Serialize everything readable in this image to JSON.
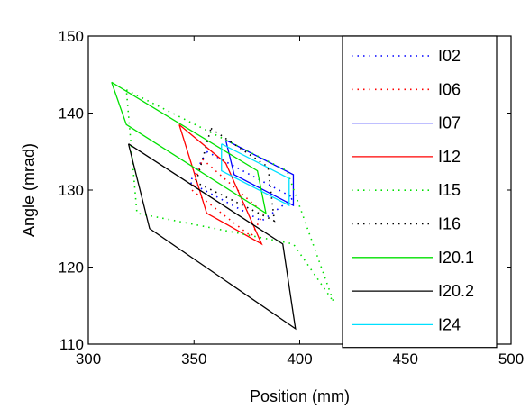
{
  "chart_data": {
    "type": "line",
    "title": "",
    "xlabel": "Position (mm)",
    "ylabel": "Angle (mrad)",
    "xlim": [
      300,
      500
    ],
    "ylim": [
      110,
      150
    ],
    "xticks": [
      300,
      350,
      400,
      450,
      500
    ],
    "yticks": [
      110,
      120,
      130,
      140,
      150
    ],
    "grid": false,
    "legend_position": "right",
    "series": [
      {
        "name": "I02",
        "color": "#0000ff",
        "style": "dotted",
        "x": [
          356,
          397,
          382,
          348,
          356
        ],
        "y": [
          135,
          129,
          126,
          131,
          135
        ]
      },
      {
        "name": "I06",
        "color": "#ff0000",
        "style": "dotted",
        "x": [
          354,
          383,
          377,
          349,
          354
        ],
        "y": [
          134,
          127,
          124,
          130,
          134
        ]
      },
      {
        "name": "I07",
        "color": "#0000ff",
        "style": "solid",
        "x": [
          365,
          397,
          397,
          369,
          365
        ],
        "y": [
          136.5,
          132,
          128,
          132,
          136.5
        ]
      },
      {
        "name": "I12",
        "color": "#ff0000",
        "style": "solid",
        "x": [
          343,
          365,
          382,
          356,
          343
        ],
        "y": [
          138.5,
          133.5,
          123,
          127,
          138.5
        ]
      },
      {
        "name": "I15",
        "color": "#00e000",
        "style": "dotted",
        "x": [
          318,
          394,
          416,
          397,
          323,
          318
        ],
        "y": [
          143,
          132.5,
          115.5,
          123,
          127,
          143
        ]
      },
      {
        "name": "I16",
        "color": "#000000",
        "style": "dotted",
        "x": [
          358,
          385,
          388,
          351,
          358
        ],
        "y": [
          138,
          133,
          126,
          131,
          138
        ]
      },
      {
        "name": "I20.1",
        "color": "#00e000",
        "style": "solid",
        "x": [
          311,
          380,
          384,
          318,
          311
        ],
        "y": [
          144,
          132.5,
          127,
          138.5,
          144
        ]
      },
      {
        "name": "I20.2",
        "color": "#000000",
        "style": "solid",
        "x": [
          319,
          392,
          398,
          329,
          319
        ],
        "y": [
          136,
          123,
          112,
          125,
          136
        ]
      },
      {
        "name": "I24",
        "color": "#00e0ff",
        "style": "solid",
        "x": [
          363,
          395,
          395,
          363,
          363
        ],
        "y": [
          136,
          131.5,
          128,
          132.5,
          136
        ]
      }
    ]
  }
}
